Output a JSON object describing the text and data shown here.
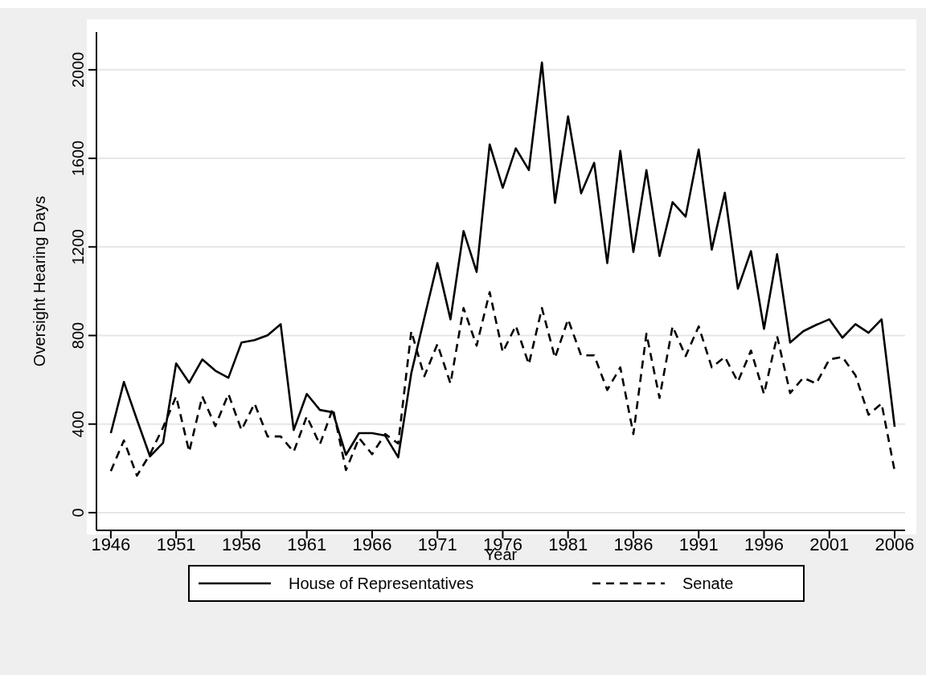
{
  "chart_data": {
    "type": "line",
    "xlabel": "Year",
    "ylabel": "Oversight Hearing Days",
    "x": [
      1946,
      1947,
      1948,
      1949,
      1950,
      1951,
      1952,
      1953,
      1954,
      1955,
      1956,
      1957,
      1958,
      1959,
      1960,
      1961,
      1962,
      1963,
      1964,
      1965,
      1966,
      1967,
      1968,
      1969,
      1970,
      1971,
      1972,
      1973,
      1974,
      1975,
      1976,
      1977,
      1978,
      1979,
      1980,
      1981,
      1982,
      1983,
      1984,
      1985,
      1986,
      1987,
      1988,
      1989,
      1990,
      1991,
      1992,
      1993,
      1994,
      1995,
      1996,
      1997,
      1998,
      1999,
      2000,
      2001,
      2002,
      2003,
      2004,
      2005,
      2006
    ],
    "series": [
      {
        "name": "House of Representatives",
        "color": "#000000",
        "line_style": "solid",
        "values": [
          359,
          590,
          420,
          254,
          315,
          674,
          587,
          692,
          641,
          609,
          768,
          779,
          801,
          851,
          373,
          536,
          464,
          453,
          261,
          359,
          359,
          348,
          250,
          630,
          880,
          1127,
          873,
          1272,
          1087,
          1663,
          1467,
          1645,
          1547,
          2033,
          1399,
          1790,
          1442,
          1580,
          1127,
          1634,
          1177,
          1547,
          1159,
          1402,
          1337,
          1640,
          1188,
          1445,
          1011,
          1181,
          830,
          1167,
          768,
          819,
          848,
          873,
          790,
          851,
          812,
          873,
          388
        ]
      },
      {
        "name": "Senate",
        "color": "#000000",
        "line_style": "dashed",
        "values": [
          188,
          326,
          167,
          264,
          385,
          525,
          275,
          525,
          391,
          536,
          373,
          493,
          344,
          344,
          275,
          435,
          308,
          471,
          192,
          337,
          264,
          355,
          312,
          819,
          616,
          761,
          583,
          924,
          754,
          996,
          725,
          844,
          670,
          924,
          699,
          873,
          710,
          710,
          554,
          656,
          355,
          808,
          518,
          841,
          707,
          841,
          656,
          703,
          591,
          732,
          536,
          797,
          540,
          609,
          583,
          692,
          703,
          620,
          442,
          493,
          188
        ]
      }
    ],
    "xlim": [
      1944.9,
      2006.8
    ],
    "xticks": [
      1946,
      1951,
      1956,
      1961,
      1966,
      1971,
      1976,
      1981,
      1986,
      1991,
      1996,
      2001,
      2006
    ],
    "ylim": [
      -80,
      2170
    ],
    "yticks": [
      0,
      400,
      800,
      1200,
      1600,
      2000
    ],
    "grid": "y",
    "legend": "bottom",
    "marker": "none"
  }
}
